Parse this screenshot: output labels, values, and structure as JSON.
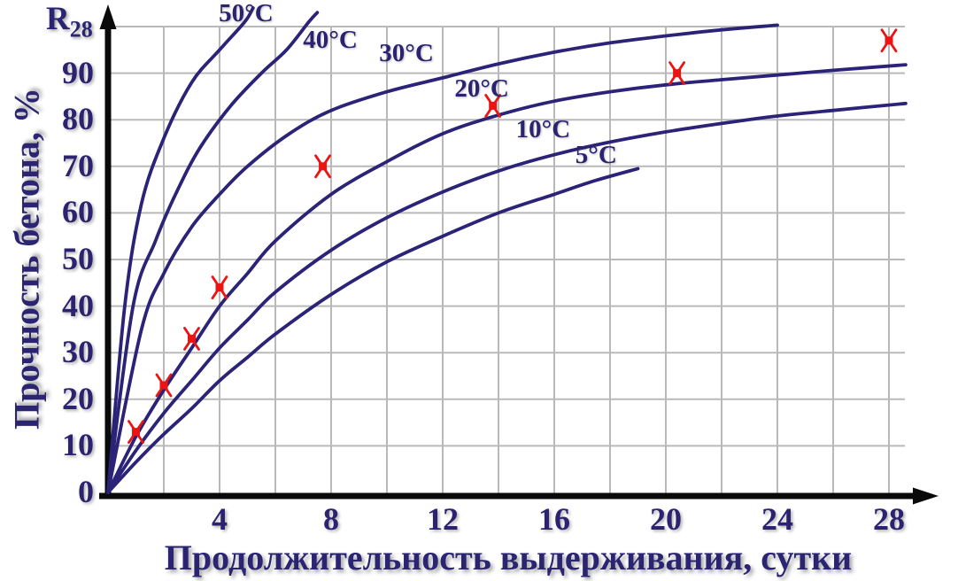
{
  "chart_data": {
    "type": "line",
    "title": "",
    "xlabel": "Продолжительность выдерживания, сутки",
    "ylabel": "Прочность бетона, %",
    "y_axis_symbol": "R",
    "y_axis_symbol_sub": "28",
    "xlim": [
      0,
      28
    ],
    "ylim": [
      0,
      100
    ],
    "x_ticks": [
      4,
      8,
      12,
      16,
      20,
      24,
      28
    ],
    "y_ticks": [
      0,
      10,
      20,
      30,
      40,
      50,
      60,
      70,
      80,
      90
    ],
    "grid": true,
    "x_unit": "сутки (days)",
    "y_unit": "%",
    "series": [
      {
        "name": "50°C",
        "label_at": [
          4.95,
          102.9
        ],
        "points": [
          [
            0,
            0
          ],
          [
            0.6,
            40
          ],
          [
            1.2,
            62
          ],
          [
            2,
            76
          ],
          [
            3,
            88
          ],
          [
            4,
            95
          ],
          [
            4.9,
            101
          ],
          [
            5.2,
            104
          ]
        ]
      },
      {
        "name": "40°C",
        "label_at": [
          7.97,
          97.2
        ],
        "points": [
          [
            0,
            0
          ],
          [
            0.9,
            40
          ],
          [
            1.7,
            54
          ],
          [
            2.5,
            65
          ],
          [
            3.3,
            74
          ],
          [
            4.4,
            83
          ],
          [
            5.5,
            90
          ],
          [
            6.4,
            95
          ],
          [
            7.2,
            101
          ],
          [
            7.5,
            103
          ]
        ]
      },
      {
        "name": "30°C",
        "label_at": [
          10.7,
          94.3
        ],
        "points": [
          [
            0,
            0
          ],
          [
            1.2,
            35
          ],
          [
            2,
            47
          ],
          [
            3,
            57
          ],
          [
            4,
            64
          ],
          [
            5,
            70
          ],
          [
            6.5,
            77
          ],
          [
            8,
            82
          ],
          [
            10,
            86
          ],
          [
            12,
            89
          ],
          [
            14,
            92
          ],
          [
            16,
            94.5
          ],
          [
            18,
            96.5
          ],
          [
            20,
            98
          ],
          [
            22,
            99.3
          ],
          [
            24,
            100.3
          ]
        ]
      },
      {
        "name": "20°C",
        "label_at": [
          13.4,
          86.7
        ],
        "points": [
          [
            0,
            0
          ],
          [
            1,
            12
          ],
          [
            2,
            22
          ],
          [
            3,
            31
          ],
          [
            4,
            40
          ],
          [
            5,
            47
          ],
          [
            6,
            54
          ],
          [
            8,
            64
          ],
          [
            10,
            71
          ],
          [
            12,
            77
          ],
          [
            14,
            81
          ],
          [
            16,
            84
          ],
          [
            18,
            86
          ],
          [
            20,
            87.5
          ],
          [
            22,
            88.6
          ],
          [
            24,
            89.6
          ],
          [
            26,
            90.6
          ],
          [
            28.6,
            91.8
          ]
        ]
      },
      {
        "name": "10°C",
        "label_at": [
          15.6,
          77.9
        ],
        "points": [
          [
            0,
            0
          ],
          [
            1,
            9
          ],
          [
            2,
            17
          ],
          [
            3,
            24
          ],
          [
            4,
            31
          ],
          [
            5,
            37
          ],
          [
            6,
            43
          ],
          [
            8,
            52
          ],
          [
            10,
            59
          ],
          [
            12,
            64.5
          ],
          [
            14,
            69
          ],
          [
            16,
            72.5
          ],
          [
            18,
            75.2
          ],
          [
            20,
            77.4
          ],
          [
            22,
            79.2
          ],
          [
            24,
            80.8
          ],
          [
            26,
            82
          ],
          [
            28.6,
            83.5
          ]
        ]
      },
      {
        "name": "5°C",
        "label_at": [
          17.5,
          72.4
        ],
        "points": [
          [
            0,
            0
          ],
          [
            1,
            6.5
          ],
          [
            2,
            12.5
          ],
          [
            3,
            18
          ],
          [
            4,
            24
          ],
          [
            5,
            29
          ],
          [
            6,
            34
          ],
          [
            8,
            42.5
          ],
          [
            10,
            49.5
          ],
          [
            12,
            55
          ],
          [
            14,
            60
          ],
          [
            16,
            64
          ],
          [
            17.5,
            67
          ],
          [
            19,
            69.5
          ]
        ]
      }
    ],
    "markers": {
      "name": "experimental-points",
      "shape": "x-with-square",
      "points": [
        [
          1,
          13
        ],
        [
          2,
          23
        ],
        [
          3,
          33
        ],
        [
          4,
          44
        ],
        [
          7.7,
          70
        ],
        [
          13.8,
          83
        ],
        [
          20.4,
          90
        ],
        [
          28,
          97
        ]
      ]
    },
    "legend_position": "labels-on-curves"
  },
  "colors": {
    "curve": "#2b2377",
    "marker": "#ec1313",
    "grid": "#b9b9b9",
    "axis": "#0a0a0a",
    "text": "#2b2270"
  }
}
